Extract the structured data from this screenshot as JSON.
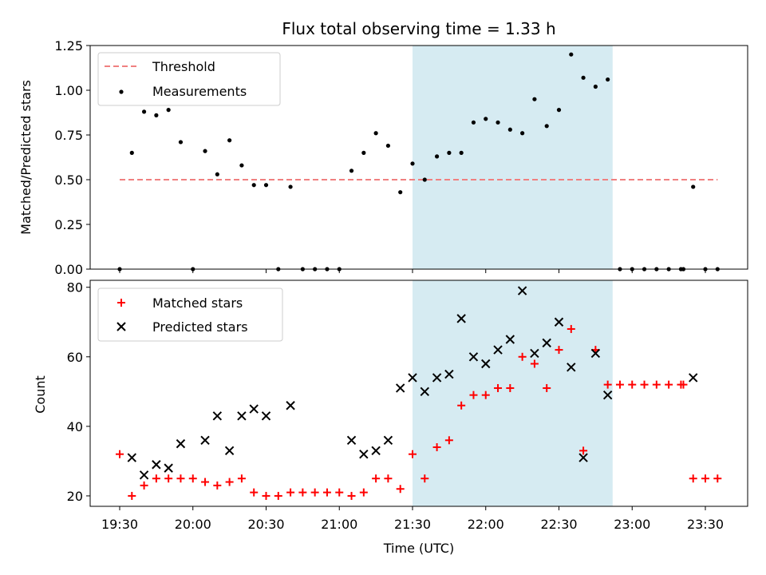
{
  "colors": {
    "threshold": "#f08080",
    "measurement": "#000000",
    "matched": "#ff0000",
    "predicted": "#000000",
    "window": "#add8e6"
  },
  "chart_data": [
    {
      "type": "scatter",
      "title": "Flux total observing time = 1.33 h",
      "xlabel": "",
      "ylabel": "Matched/Predicted stars",
      "ylim": [
        0,
        1.25
      ],
      "yticks": [
        "0.00",
        "0.25",
        "0.50",
        "0.75",
        "1.00",
        "1.25"
      ],
      "shaded_span": [
        "21:30",
        "22:52"
      ],
      "legend_position": "upper-left",
      "series": [
        {
          "name": "Threshold",
          "style": "dashed-line",
          "x": [
            "19:30",
            "23:35"
          ],
          "y": [
            0.5,
            0.5
          ]
        },
        {
          "name": "Measurements",
          "style": "dot",
          "x": [
            "19:30",
            "19:35",
            "19:40",
            "19:45",
            "19:50",
            "19:55",
            "20:00",
            "20:05",
            "20:10",
            "20:15",
            "20:20",
            "20:25",
            "20:30",
            "20:35",
            "20:40",
            "20:45",
            "20:50",
            "20:55",
            "21:00",
            "21:05",
            "21:10",
            "21:15",
            "21:20",
            "21:25",
            "21:30",
            "21:35",
            "21:40",
            "21:45",
            "21:50",
            "21:55",
            "22:00",
            "22:05",
            "22:10",
            "22:15",
            "22:20",
            "22:25",
            "22:30",
            "22:35",
            "22:40",
            "22:45",
            "22:50",
            "22:55",
            "23:00",
            "23:05",
            "23:10",
            "23:15",
            "23:20",
            "23:21",
            "23:25",
            "23:30",
            "23:35"
          ],
          "y": [
            0.0,
            0.65,
            0.88,
            0.86,
            0.89,
            0.71,
            0.0,
            0.66,
            0.53,
            0.72,
            0.58,
            0.47,
            0.47,
            0.0,
            0.46,
            0.0,
            0.0,
            0.0,
            0.0,
            0.55,
            0.65,
            0.76,
            0.69,
            0.43,
            0.59,
            0.5,
            0.63,
            0.65,
            0.65,
            0.82,
            0.84,
            0.82,
            0.78,
            0.76,
            0.95,
            0.8,
            0.89,
            1.2,
            1.07,
            1.02,
            1.06,
            0.0,
            0.0,
            0.0,
            0.0,
            0.0,
            0.0,
            0.0,
            0.46,
            0.0,
            0.0
          ]
        }
      ]
    },
    {
      "type": "scatter",
      "title": "",
      "xlabel": "Time (UTC)",
      "ylabel": "Count",
      "ylim": [
        17,
        82
      ],
      "yticks": [
        "20",
        "40",
        "60",
        "80"
      ],
      "xticks": [
        "19:30",
        "20:00",
        "20:30",
        "21:00",
        "21:30",
        "22:00",
        "22:30",
        "23:00",
        "23:30"
      ],
      "shaded_span": [
        "21:30",
        "22:52"
      ],
      "legend_position": "upper-left",
      "series": [
        {
          "name": "Matched stars",
          "style": "plus",
          "x": [
            "19:30",
            "19:35",
            "19:40",
            "19:45",
            "19:50",
            "19:55",
            "20:00",
            "20:05",
            "20:10",
            "20:15",
            "20:20",
            "20:25",
            "20:30",
            "20:35",
            "20:40",
            "20:45",
            "20:50",
            "20:55",
            "21:00",
            "21:05",
            "21:10",
            "21:15",
            "21:20",
            "21:25",
            "21:30",
            "21:35",
            "21:40",
            "21:45",
            "21:50",
            "21:55",
            "22:00",
            "22:05",
            "22:10",
            "22:15",
            "22:20",
            "22:25",
            "22:30",
            "22:35",
            "22:40",
            "22:45",
            "22:50",
            "22:55",
            "23:00",
            "23:05",
            "23:10",
            "23:15",
            "23:20",
            "23:21",
            "23:25",
            "23:30",
            "23:35"
          ],
          "y": [
            32,
            20,
            23,
            25,
            25,
            25,
            25,
            24,
            23,
            24,
            25,
            21,
            20,
            20,
            21,
            21,
            21,
            21,
            21,
            20,
            21,
            25,
            25,
            22,
            32,
            25,
            34,
            36,
            46,
            49,
            49,
            51,
            51,
            60,
            58,
            51,
            62,
            68,
            33,
            62,
            52,
            52,
            52,
            52,
            52,
            52,
            52,
            52,
            25,
            25,
            25
          ]
        },
        {
          "name": "Predicted stars",
          "style": "x",
          "x": [
            "19:35",
            "19:40",
            "19:45",
            "19:50",
            "19:55",
            "20:05",
            "20:10",
            "20:15",
            "20:20",
            "20:25",
            "20:30",
            "20:40",
            "21:05",
            "21:10",
            "21:15",
            "21:20",
            "21:25",
            "21:30",
            "21:35",
            "21:40",
            "21:45",
            "21:50",
            "21:55",
            "22:00",
            "22:05",
            "22:10",
            "22:15",
            "22:20",
            "22:25",
            "22:30",
            "22:35",
            "22:40",
            "22:45",
            "22:50",
            "23:25"
          ],
          "y": [
            31,
            26,
            29,
            28,
            35,
            36,
            43,
            33,
            43,
            45,
            43,
            46,
            36,
            32,
            33,
            36,
            51,
            54,
            50,
            54,
            55,
            71,
            60,
            58,
            62,
            65,
            79,
            61,
            64,
            70,
            57,
            31,
            61,
            49,
            54
          ]
        }
      ]
    }
  ]
}
